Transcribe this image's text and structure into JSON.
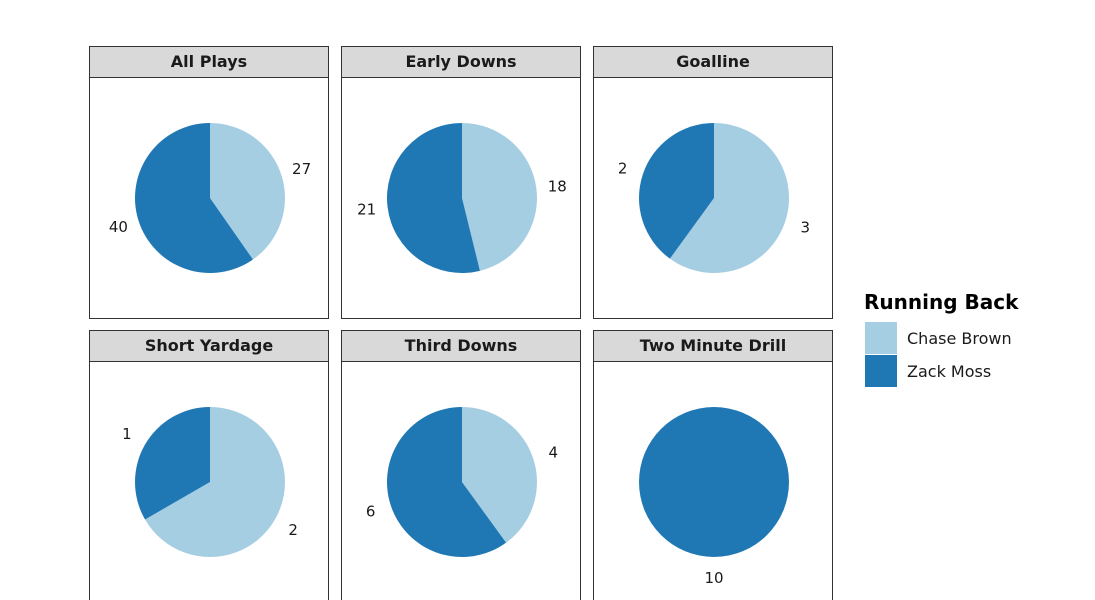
{
  "chart_data": {
    "type": "pie",
    "colors": {
      "Chase Brown": "#a6cee3",
      "Zack Moss": "#1f78b4",
      "strip_fill": "#d9d9d9",
      "panel_border": "#333333"
    },
    "legend": {
      "title": "Running Back",
      "entries": [
        "Chase Brown",
        "Zack Moss"
      ]
    },
    "series": [
      "Chase Brown",
      "Zack Moss"
    ],
    "panels": [
      {
        "label": "All Plays",
        "values": [
          27,
          40
        ]
      },
      {
        "label": "Early Downs",
        "values": [
          18,
          21
        ]
      },
      {
        "label": "Goalline",
        "values": [
          3,
          2
        ]
      },
      {
        "label": "Short Yardage",
        "values": [
          2,
          1
        ]
      },
      {
        "label": "Third Downs",
        "values": [
          4,
          6
        ]
      },
      {
        "label": "Two Minute Drill",
        "values": [
          0,
          10
        ]
      }
    ]
  }
}
